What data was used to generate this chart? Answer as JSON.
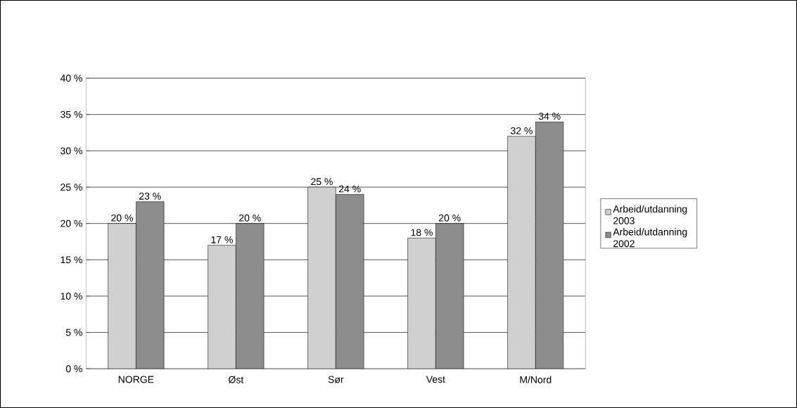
{
  "chart_data": {
    "type": "bar",
    "categories": [
      "NORGE",
      "Øst",
      "Sør",
      "Vest",
      "M/Nord"
    ],
    "series": [
      {
        "name": "Arbeid/utdanning 2003",
        "color": "#d0d0d0",
        "values": [
          20,
          17,
          25,
          18,
          32
        ],
        "value_labels": [
          "20 %",
          "17 %",
          "25 %",
          "18 %",
          "32 %"
        ]
      },
      {
        "name": "Arbeid/utdanning 2002",
        "color": "#8c8c8c",
        "values": [
          23,
          20,
          24,
          20,
          34
        ],
        "value_labels": [
          "23 %",
          "20 %",
          "24 %",
          "20 %",
          "34 %"
        ]
      }
    ],
    "ylim": [
      0,
      40
    ],
    "yticks": [
      {
        "value": 0,
        "label": "0 %"
      },
      {
        "value": 5,
        "label": "5 %"
      },
      {
        "value": 10,
        "label": "10 %"
      },
      {
        "value": 15,
        "label": "15 %"
      },
      {
        "value": 20,
        "label": "20 %"
      },
      {
        "value": 25,
        "label": "25 %"
      },
      {
        "value": 30,
        "label": "30 %"
      },
      {
        "value": 35,
        "label": "35 %"
      },
      {
        "value": 40,
        "label": "40 %"
      }
    ],
    "grid": "y",
    "legend": "right"
  }
}
